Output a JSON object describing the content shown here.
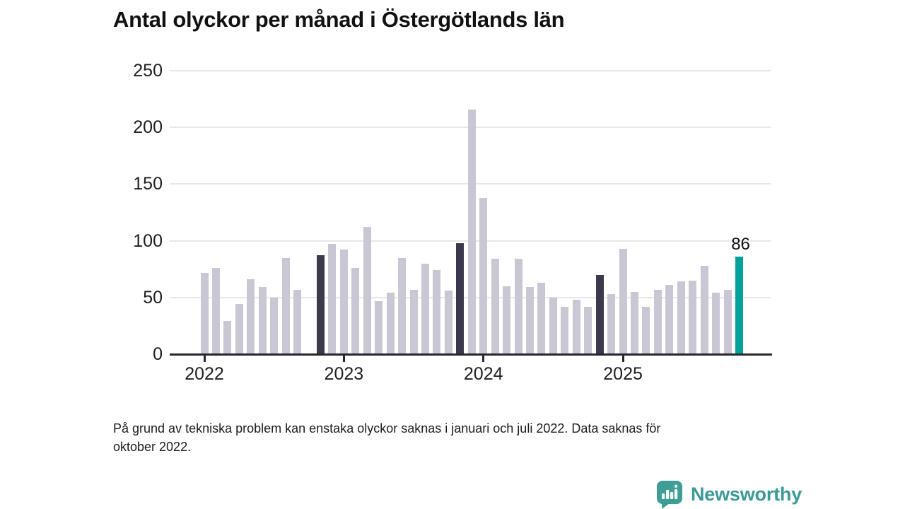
{
  "chart_data": {
    "type": "bar",
    "title": "Antal olyckor per månad i Östergötlands län",
    "xlabel": "",
    "ylabel": "",
    "ylim": [
      0,
      250
    ],
    "yticks": [
      0,
      50,
      100,
      150,
      200,
      250
    ],
    "grid": "horizontal",
    "x_tick_labels": [
      "2022",
      "2023",
      "2024",
      "2025"
    ],
    "x_tick_month_indices": [
      0,
      12,
      24,
      36
    ],
    "colors": {
      "base": "#c9c7d3",
      "dark": "#3b394b",
      "accent": "#00a29b"
    },
    "series": [
      {
        "name": "Antal olyckor",
        "points": [
          {
            "label": "jan 2022",
            "value": 72,
            "highlight": "base"
          },
          {
            "label": "feb 2022",
            "value": 76,
            "highlight": "base"
          },
          {
            "label": "mar 2022",
            "value": 29,
            "highlight": "base"
          },
          {
            "label": "apr 2022",
            "value": 44,
            "highlight": "base"
          },
          {
            "label": "maj 2022",
            "value": 66,
            "highlight": "base"
          },
          {
            "label": "jun 2022",
            "value": 59,
            "highlight": "base"
          },
          {
            "label": "jul 2022",
            "value": 50,
            "highlight": "base"
          },
          {
            "label": "aug 2022",
            "value": 85,
            "highlight": "base"
          },
          {
            "label": "sep 2022",
            "value": 57,
            "highlight": "base"
          },
          {
            "label": "okt 2022",
            "value": null,
            "highlight": "base"
          },
          {
            "label": "nov 2022",
            "value": 87,
            "highlight": "dark"
          },
          {
            "label": "dec 2022",
            "value": 97,
            "highlight": "base"
          },
          {
            "label": "jan 2023",
            "value": 92,
            "highlight": "base"
          },
          {
            "label": "feb 2023",
            "value": 76,
            "highlight": "base"
          },
          {
            "label": "mar 2023",
            "value": 112,
            "highlight": "base"
          },
          {
            "label": "apr 2023",
            "value": 47,
            "highlight": "base"
          },
          {
            "label": "maj 2023",
            "value": 54,
            "highlight": "base"
          },
          {
            "label": "jun 2023",
            "value": 85,
            "highlight": "base"
          },
          {
            "label": "jul 2023",
            "value": 57,
            "highlight": "base"
          },
          {
            "label": "aug 2023",
            "value": 80,
            "highlight": "base"
          },
          {
            "label": "sep 2023",
            "value": 74,
            "highlight": "base"
          },
          {
            "label": "okt 2023",
            "value": 56,
            "highlight": "base"
          },
          {
            "label": "nov 2023",
            "value": 98,
            "highlight": "dark"
          },
          {
            "label": "dec 2023",
            "value": 216,
            "highlight": "base"
          },
          {
            "label": "jan 2024",
            "value": 138,
            "highlight": "base"
          },
          {
            "label": "feb 2024",
            "value": 84,
            "highlight": "base"
          },
          {
            "label": "mar 2024",
            "value": 60,
            "highlight": "base"
          },
          {
            "label": "apr 2024",
            "value": 84,
            "highlight": "base"
          },
          {
            "label": "maj 2024",
            "value": 59,
            "highlight": "base"
          },
          {
            "label": "jun 2024",
            "value": 63,
            "highlight": "base"
          },
          {
            "label": "jul 2024",
            "value": 50,
            "highlight": "base"
          },
          {
            "label": "aug 2024",
            "value": 42,
            "highlight": "base"
          },
          {
            "label": "sep 2024",
            "value": 48,
            "highlight": "base"
          },
          {
            "label": "okt 2024",
            "value": 42,
            "highlight": "base"
          },
          {
            "label": "nov 2024",
            "value": 70,
            "highlight": "dark"
          },
          {
            "label": "dec 2024",
            "value": 53,
            "highlight": "base"
          },
          {
            "label": "jan 2025",
            "value": 93,
            "highlight": "base"
          },
          {
            "label": "feb 2025",
            "value": 55,
            "highlight": "base"
          },
          {
            "label": "mar 2025",
            "value": 42,
            "highlight": "base"
          },
          {
            "label": "apr 2025",
            "value": 57,
            "highlight": "base"
          },
          {
            "label": "maj 2025",
            "value": 61,
            "highlight": "base"
          },
          {
            "label": "jun 2025",
            "value": 64,
            "highlight": "base"
          },
          {
            "label": "jul 2025",
            "value": 65,
            "highlight": "base"
          },
          {
            "label": "aug 2025",
            "value": 78,
            "highlight": "base"
          },
          {
            "label": "sep 2025",
            "value": 54,
            "highlight": "base"
          },
          {
            "label": "okt 2025",
            "value": 57,
            "highlight": "base"
          },
          {
            "label": "nov 2025",
            "value": 86,
            "highlight": "accent"
          }
        ]
      }
    ],
    "annotation": {
      "text": "86",
      "month_index": 46
    }
  },
  "footnote": {
    "line1": "På grund av tekniska problem kan enstaka olyckor saknas i januari och juli 2022. Data saknas för",
    "line2": "oktober 2022."
  },
  "branding": {
    "wordmark": "Newsworthy",
    "color": "#3a9a94",
    "icon_color": "#3e9e96"
  }
}
